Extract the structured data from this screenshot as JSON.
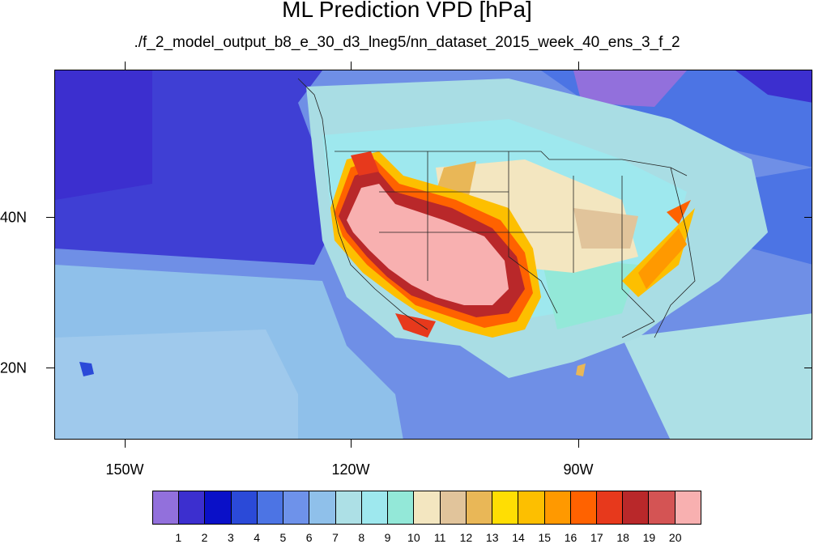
{
  "title": "ML Prediction VPD [hPa]",
  "subtitle": "./f_2_model_output_b8_e_30_d3_lneg5/nn_dataset_2015_week_40_ens_3_f_2",
  "map": {
    "lon_range": [
      -165,
      -65
    ],
    "lat_range": [
      10,
      58
    ],
    "x_labels": [
      "150W",
      "120W",
      "90W"
    ],
    "y_labels": [
      "40N",
      "20N"
    ],
    "colors": {
      "ocean_deep": "#3f3fd4",
      "ocean": "#6f8fe6",
      "ocean_light": "#8fc0ea",
      "land_moist": "#a9dde4",
      "cyan": "#9ee8ee",
      "mint": "#93e8d8",
      "tan": "#f3e6c0",
      "tan_dark": "#e1c49b",
      "gold": "#e9b757",
      "yellow": "#ffde03",
      "orange": "#fdb000",
      "orange2": "#ff9900",
      "red_orange": "#ff5a00",
      "red": "#e7391c",
      "dark_red": "#b9282a",
      "rose": "#d04a4a",
      "pink": "#f8b0b0",
      "purple": "#9270dc"
    }
  },
  "colorbar": {
    "labels": [
      "1",
      "2",
      "3",
      "4",
      "5",
      "6",
      "7",
      "8",
      "9",
      "10",
      "11",
      "12",
      "13",
      "14",
      "15",
      "16",
      "17",
      "18",
      "19",
      "20"
    ],
    "colors": [
      "#9270dc",
      "#3c2fcf",
      "#0a10c8",
      "#2b4ad8",
      "#4c74e4",
      "#6e92ea",
      "#8fc0ea",
      "#ade0e6",
      "#9ee8ee",
      "#93e8d8",
      "#f3e6c0",
      "#e1c49b",
      "#e9b757",
      "#ffde03",
      "#fdbf00",
      "#ff9900",
      "#ff6200",
      "#e7391c",
      "#b9282a",
      "#d45454",
      "#f8b0b0"
    ]
  }
}
